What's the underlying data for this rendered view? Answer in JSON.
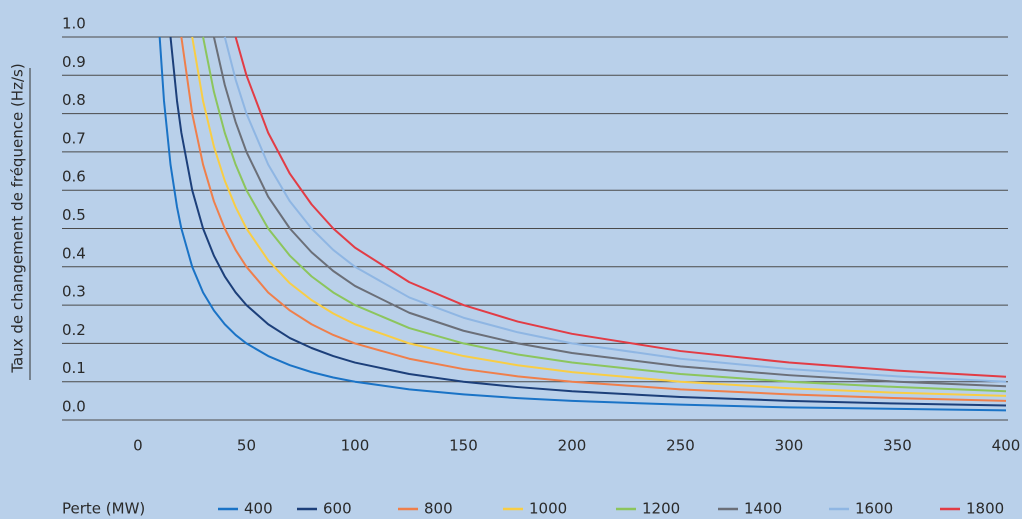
{
  "chart_data": {
    "type": "line",
    "y_label": "Taux de changement de fréquence (Hz/s)",
    "legend_title": "Perte (MW)",
    "legend": "bottom",
    "grid": true,
    "x": [
      10,
      12,
      15,
      18,
      20,
      25,
      30,
      35,
      40,
      45,
      50,
      60,
      70,
      80,
      90,
      100,
      125,
      150,
      175,
      200,
      250,
      300,
      350,
      400
    ],
    "xlim": [
      -35,
      400
    ],
    "xticks": [
      0,
      50,
      100,
      150,
      200,
      250,
      300,
      350,
      400
    ],
    "ylim": [
      0,
      1
    ],
    "yticks": [
      {
        "value": 0,
        "label": "0.0"
      },
      0.1,
      0.2,
      0.3,
      0.4,
      0.5,
      0.6,
      0.7,
      0.8,
      0.9,
      {
        "value": 1,
        "label": "1.0"
      }
    ],
    "series": [
      {
        "name": "400",
        "color": "#1a73c6",
        "values": [
          1,
          0.833,
          0.667,
          0.556,
          0.5,
          0.4,
          0.333,
          0.286,
          0.25,
          0.222,
          0.2,
          0.167,
          0.143,
          0.125,
          0.111,
          0.1,
          0.08,
          0.067,
          0.057,
          0.05,
          0.04,
          0.033,
          0.029,
          0.025
        ]
      },
      {
        "name": "600",
        "color": "#1c3f7a",
        "values": [
          null,
          null,
          1,
          0.833,
          0.75,
          0.6,
          0.5,
          0.429,
          0.375,
          0.333,
          0.3,
          0.25,
          0.214,
          0.188,
          0.167,
          0.15,
          0.12,
          0.1,
          0.086,
          0.075,
          0.06,
          0.05,
          0.043,
          0.038
        ]
      },
      {
        "name": "800",
        "color": "#ef7f4b",
        "values": [
          null,
          null,
          null,
          null,
          1,
          0.8,
          0.667,
          0.571,
          0.5,
          0.444,
          0.4,
          0.333,
          0.286,
          0.25,
          0.222,
          0.2,
          0.16,
          0.133,
          0.114,
          0.1,
          0.08,
          0.067,
          0.057,
          0.05
        ]
      },
      {
        "name": "1000",
        "color": "#f8cd45",
        "values": [
          null,
          null,
          null,
          null,
          null,
          1,
          0.833,
          0.714,
          0.625,
          0.556,
          0.5,
          0.417,
          0.357,
          0.313,
          0.278,
          0.25,
          0.2,
          0.167,
          0.143,
          0.125,
          0.1,
          0.083,
          0.071,
          0.063
        ]
      },
      {
        "name": "1200",
        "color": "#8cc55d",
        "values": [
          null,
          null,
          null,
          null,
          null,
          null,
          1,
          0.857,
          0.75,
          0.667,
          0.6,
          0.5,
          0.429,
          0.375,
          0.333,
          0.3,
          0.24,
          0.2,
          0.171,
          0.15,
          0.12,
          0.1,
          0.086,
          0.075
        ]
      },
      {
        "name": "1400",
        "color": "#6b6f78",
        "values": [
          null,
          null,
          null,
          null,
          null,
          null,
          null,
          1,
          0.875,
          0.778,
          0.7,
          0.583,
          0.5,
          0.438,
          0.389,
          0.35,
          0.28,
          0.233,
          0.2,
          0.175,
          0.14,
          0.117,
          0.1,
          0.088
        ]
      },
      {
        "name": "1600",
        "color": "#8fb6e3",
        "values": [
          null,
          null,
          null,
          null,
          null,
          null,
          null,
          null,
          1,
          0.889,
          0.8,
          0.667,
          0.571,
          0.5,
          0.444,
          0.4,
          0.32,
          0.267,
          0.229,
          0.2,
          0.16,
          0.133,
          0.114,
          0.1
        ]
      },
      {
        "name": "1800",
        "color": "#e23c45",
        "values": [
          null,
          null,
          null,
          null,
          null,
          null,
          null,
          null,
          null,
          1,
          0.9,
          0.75,
          0.643,
          0.563,
          0.5,
          0.45,
          0.36,
          0.3,
          0.257,
          0.225,
          0.18,
          0.15,
          0.129,
          0.113
        ]
      }
    ]
  }
}
